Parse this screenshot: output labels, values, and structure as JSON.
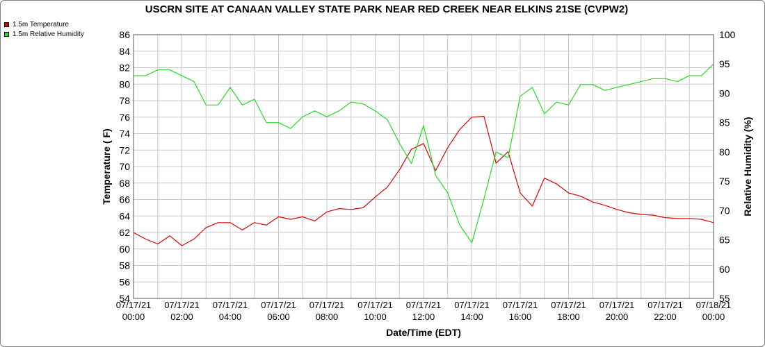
{
  "chart_data": {
    "type": "line",
    "title": "USCRN SITE AT CANAAN VALLEY STATE PARK NEAR RED CREEK NEAR ELKINS 21SE (CVPW2)",
    "xlabel": "Date/Time (EDT)",
    "ylabel_left": "Temperature ( F)",
    "ylabel_right": "Relative Humidity (%)",
    "x_ticks": [
      {
        "hour": 0,
        "date": "07/17/21",
        "time": "00:00"
      },
      {
        "hour": 2,
        "date": "07/17/21",
        "time": "02:00"
      },
      {
        "hour": 4,
        "date": "07/17/21",
        "time": "04:00"
      },
      {
        "hour": 6,
        "date": "07/17/21",
        "time": "06:00"
      },
      {
        "hour": 8,
        "date": "07/17/21",
        "time": "08:00"
      },
      {
        "hour": 10,
        "date": "07/17/21",
        "time": "10:00"
      },
      {
        "hour": 12,
        "date": "07/17/21",
        "time": "12:00"
      },
      {
        "hour": 14,
        "date": "07/17/21",
        "time": "14:00"
      },
      {
        "hour": 16,
        "date": "07/17/21",
        "time": "16:00"
      },
      {
        "hour": 18,
        "date": "07/17/21",
        "time": "18:00"
      },
      {
        "hour": 20,
        "date": "07/17/21",
        "time": "20:00"
      },
      {
        "hour": 22,
        "date": "07/17/21",
        "time": "22:00"
      },
      {
        "hour": 24,
        "date": "07/18/21",
        "time": "00:00"
      }
    ],
    "xlim_hours": [
      0,
      24
    ],
    "ylim_left": [
      54,
      86
    ],
    "yticks_left": [
      54,
      56,
      58,
      60,
      62,
      64,
      66,
      68,
      70,
      72,
      74,
      76,
      78,
      80,
      82,
      84,
      86
    ],
    "ylim_right": [
      55,
      100
    ],
    "yticks_right": [
      55,
      60,
      65,
      70,
      75,
      80,
      85,
      90,
      95,
      100
    ],
    "grid": true,
    "legend_position": "top-left outside",
    "series": [
      {
        "name": "1.5m Temperature",
        "color": "#e00000",
        "axis": "left",
        "hours": [
          0,
          0.5,
          1,
          1.5,
          2,
          2.5,
          3,
          3.5,
          4,
          4.5,
          5,
          5.5,
          6,
          6.5,
          7,
          7.5,
          8,
          8.5,
          9,
          9.5,
          10,
          10.5,
          11,
          11.5,
          12,
          12.5,
          13,
          13.5,
          14,
          14.5,
          15,
          15.5,
          16,
          16.5,
          17,
          17.5,
          18,
          18.5,
          19,
          19.5,
          20,
          20.5,
          21,
          21.5,
          22,
          22.5,
          23,
          23.5,
          24
        ],
        "values": [
          62.0,
          61.2,
          60.6,
          61.6,
          60.4,
          61.2,
          62.6,
          63.2,
          63.2,
          62.3,
          63.2,
          62.9,
          63.9,
          63.6,
          63.9,
          63.4,
          64.5,
          64.9,
          64.8,
          65.0,
          66.3,
          67.5,
          69.6,
          72.1,
          72.8,
          69.5,
          72.3,
          74.5,
          76.0,
          76.1,
          70.4,
          71.8,
          66.8,
          65.2,
          68.6,
          67.9,
          66.8,
          66.4,
          65.7,
          65.3,
          64.8,
          64.4,
          64.2,
          64.1,
          63.8,
          63.7,
          63.7,
          63.6,
          63.2
        ]
      },
      {
        "name": "1.5m Relative Humidity",
        "color": "#22dd22",
        "axis": "right",
        "hours": [
          0,
          0.5,
          1,
          1.5,
          2,
          2.5,
          3,
          3.5,
          4,
          4.5,
          5,
          5.5,
          6,
          6.5,
          7,
          7.5,
          8,
          8.5,
          9,
          9.5,
          10,
          10.5,
          11,
          11.5,
          12,
          12.5,
          13,
          13.5,
          14,
          14.5,
          15,
          15.5,
          16,
          16.5,
          17,
          17.5,
          18,
          18.5,
          19,
          19.5,
          20,
          20.5,
          21,
          21.5,
          22,
          22.5,
          23,
          23.5,
          24
        ],
        "values": [
          93.0,
          93.0,
          94.0,
          94.0,
          93.0,
          92.0,
          88.0,
          88.0,
          91.0,
          88.0,
          89.0,
          85.0,
          85.0,
          84.0,
          86.0,
          87.0,
          86.0,
          87.0,
          88.5,
          88.2,
          87.0,
          85.5,
          81.5,
          78.0,
          84.5,
          76.0,
          73.0,
          67.5,
          64.5,
          72.0,
          80.0,
          79.0,
          89.5,
          91.0,
          86.5,
          88.5,
          88.0,
          91.5,
          91.5,
          90.5,
          91.0,
          91.5,
          92.0,
          92.5,
          92.5,
          92.0,
          93.0,
          93.0,
          95.0
        ]
      }
    ]
  }
}
